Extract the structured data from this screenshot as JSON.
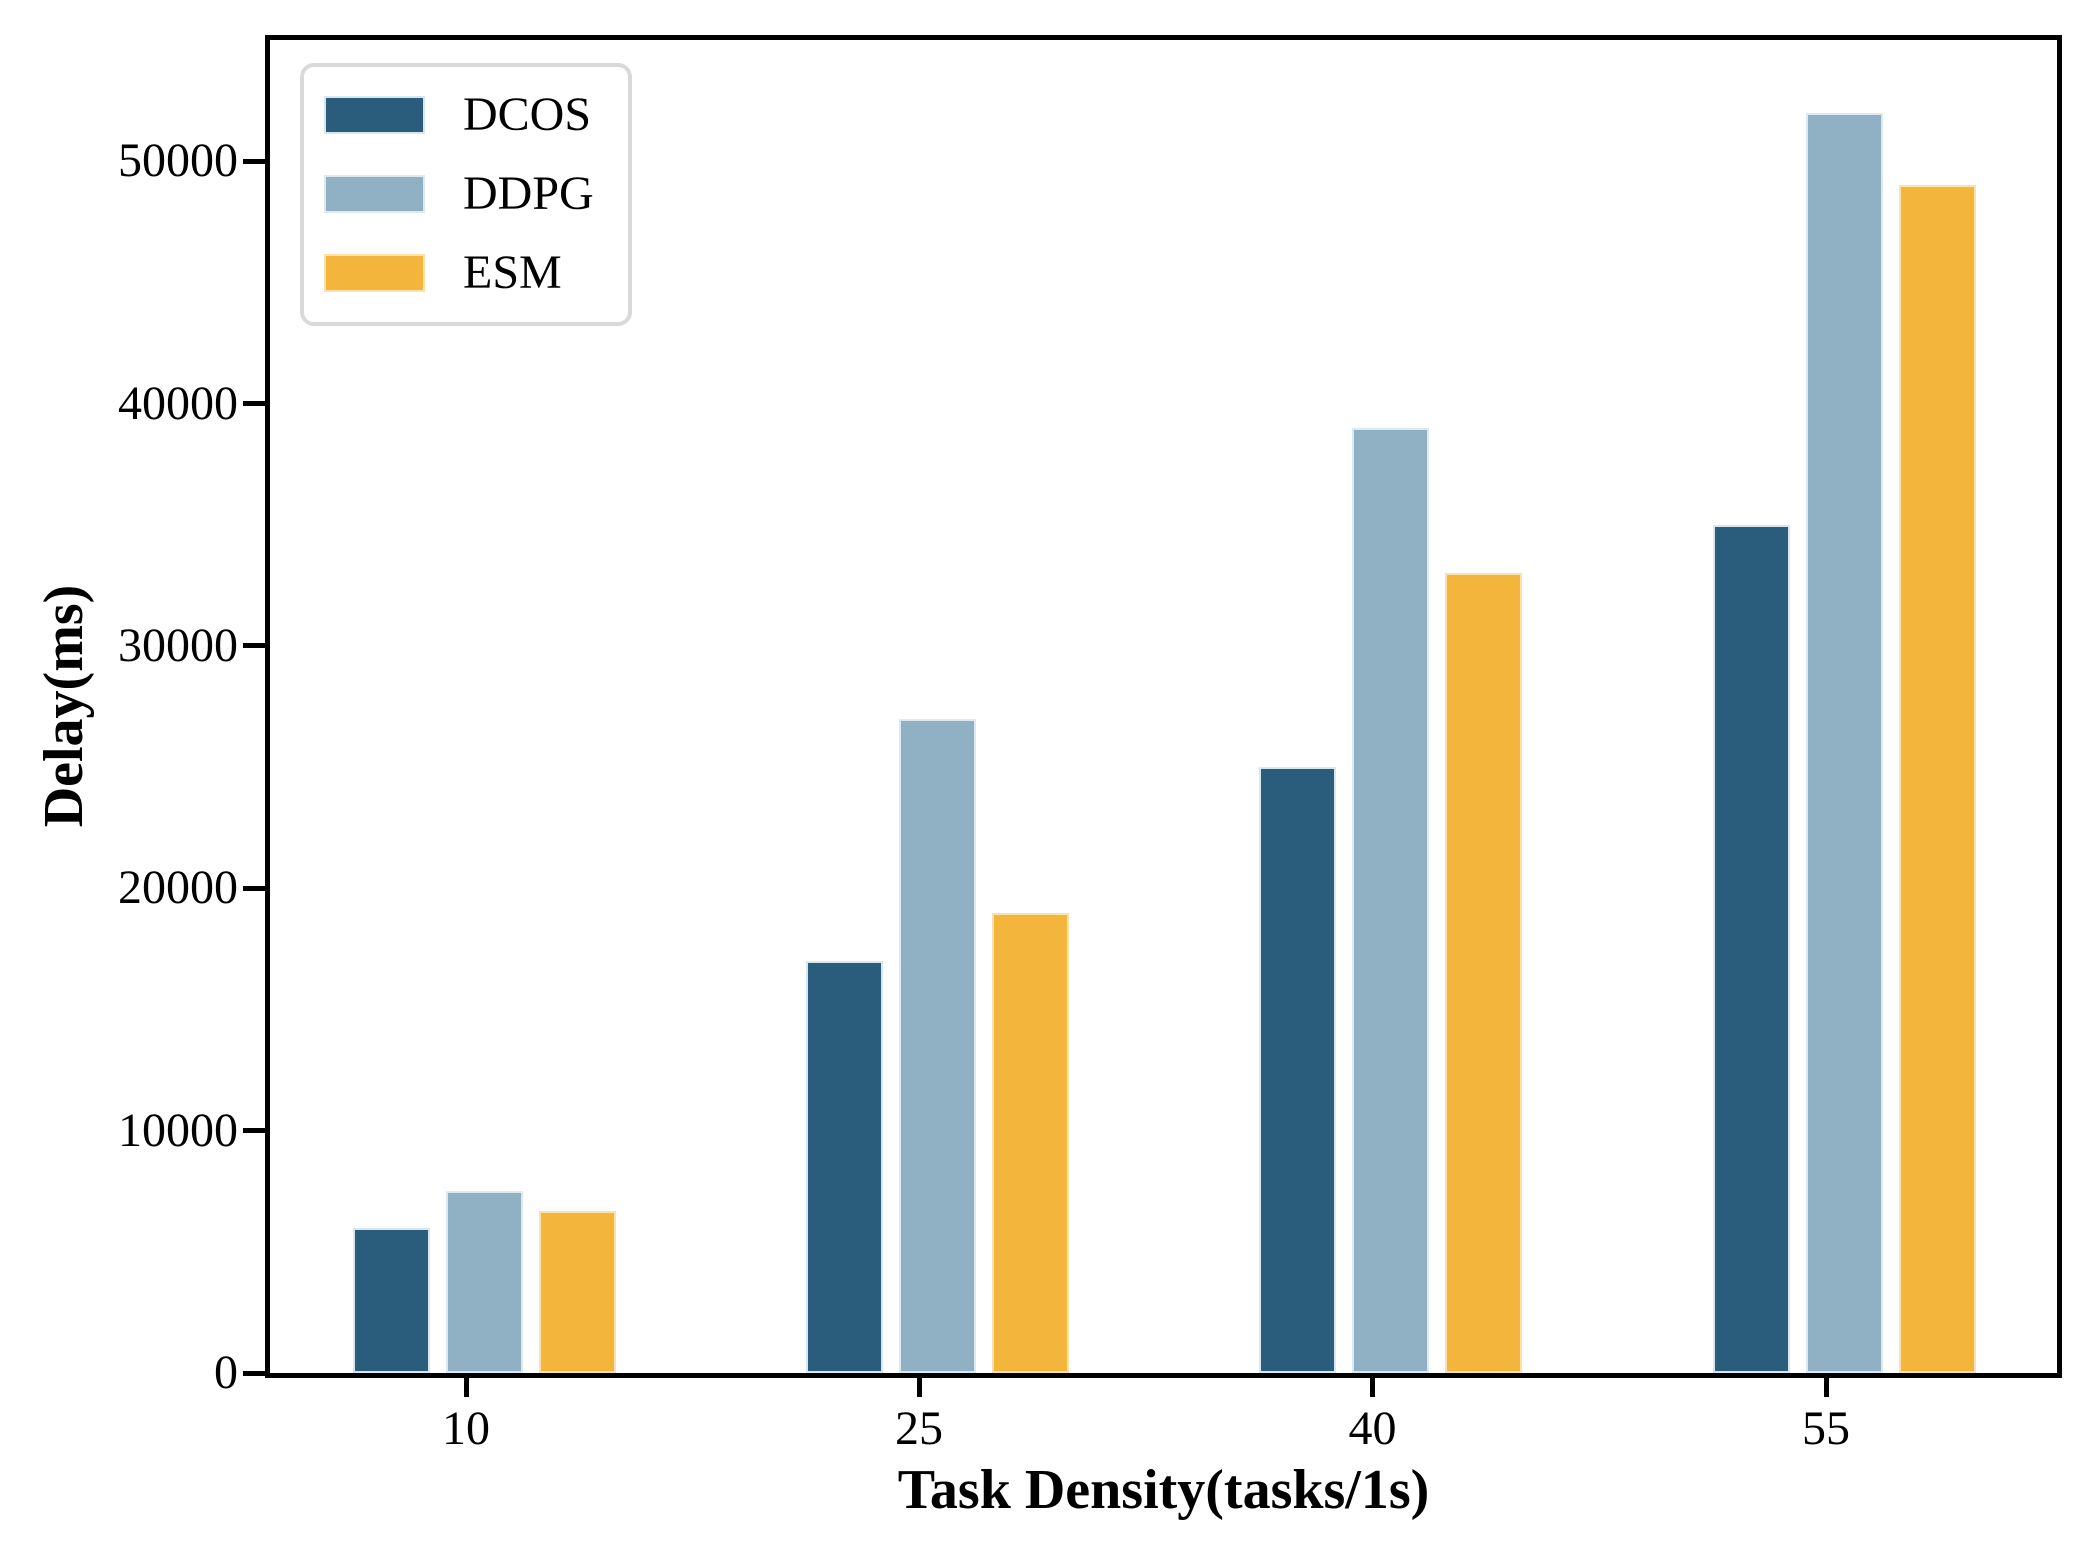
{
  "chart_data": {
    "type": "bar",
    "title": "",
    "xlabel": "Task Density(tasks/1s)",
    "ylabel": "Delay(ms)",
    "categories": [
      "10",
      "25",
      "40",
      "55"
    ],
    "series": [
      {
        "name": "DCOS",
        "color": "#2A5C7B",
        "edge": "#d8e6ef",
        "values": [
          6000,
          17000,
          25000,
          35000
        ]
      },
      {
        "name": "DDPG",
        "color": "#8FB1C3",
        "edge": "#dce9f1",
        "values": [
          7500,
          27000,
          39000,
          52000
        ]
      },
      {
        "name": "ESM",
        "color": "#F4B53C",
        "edge": "#f9e2ae",
        "values": [
          6700,
          19000,
          33000,
          49000
        ]
      }
    ],
    "ylim": [
      0,
      55000
    ],
    "yticks": [
      {
        "value": 0,
        "label": "0"
      },
      {
        "value": 10000,
        "label": "10000"
      },
      {
        "value": 20000,
        "label": "20000"
      },
      {
        "value": 30000,
        "label": "30000"
      },
      {
        "value": 40000,
        "label": "40000"
      },
      {
        "value": 50000,
        "label": "50000"
      }
    ],
    "grid": false,
    "legend_position": "upper left",
    "legend_labels": [
      "DCOS",
      "DDPG",
      "ESM"
    ]
  },
  "colors": {
    "background": "#ffffff",
    "axis": "#000000",
    "legend_border": "#d9d9d9"
  }
}
